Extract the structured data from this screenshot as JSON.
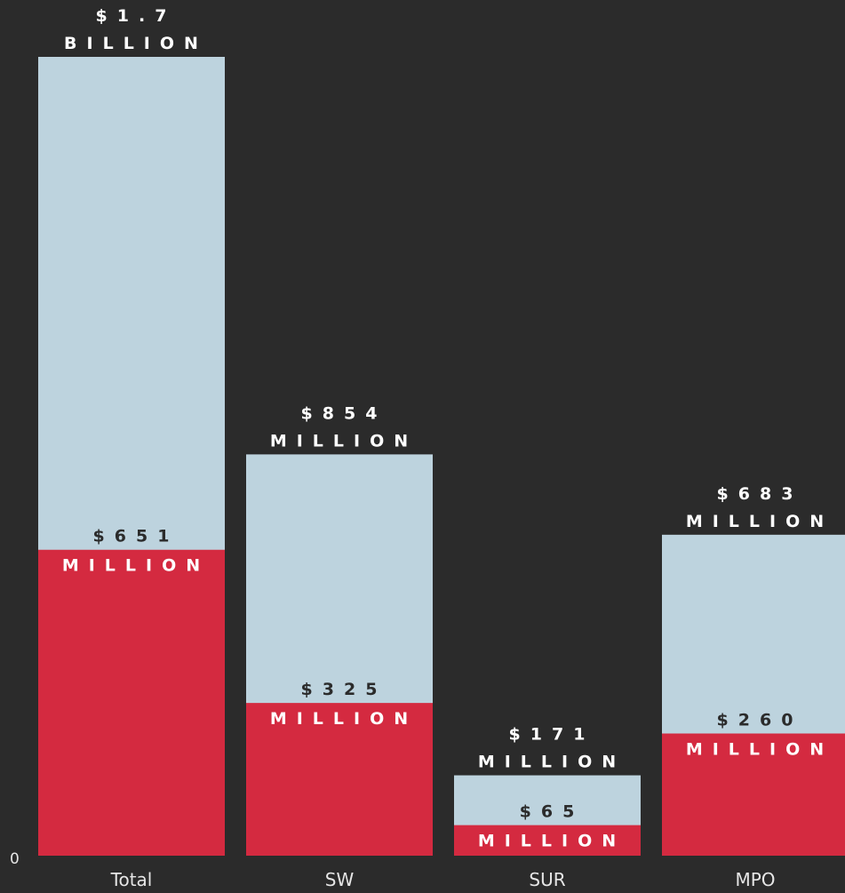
{
  "chart_data": {
    "type": "bar",
    "stacked": "overlay",
    "categories": [
      "Total",
      "SW",
      "SUR",
      "MPO"
    ],
    "series": [
      {
        "values": [
          1700,
          854,
          171,
          683
        ],
        "color": "#bdd3de"
      },
      {
        "values": [
          651,
          325,
          65,
          260
        ],
        "color": "#d42a40"
      }
    ],
    "total_labels": [
      [
        "$1.7",
        "BILLION"
      ],
      [
        "$854",
        "MILLION"
      ],
      [
        "$171",
        "MILLION"
      ],
      [
        "$683",
        "MILLION"
      ]
    ],
    "part_labels": [
      [
        "$651",
        "MILLION"
      ],
      [
        "$325",
        "MILLION"
      ],
      [
        "$65",
        "MILLION"
      ],
      [
        "$260",
        "MILLION"
      ]
    ],
    "y_tick_zero": "0",
    "ylim": [
      0,
      1700
    ],
    "grid": false,
    "legend": "none"
  }
}
